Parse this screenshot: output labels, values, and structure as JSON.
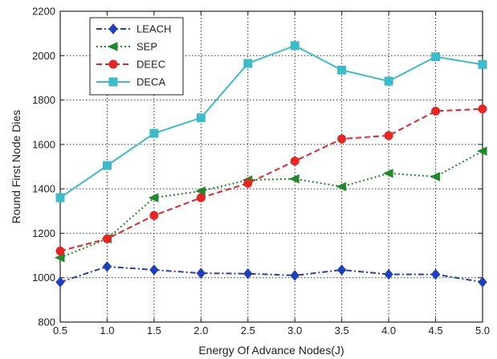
{
  "chart_data": {
    "type": "line",
    "title": "",
    "xlabel": "Energy Of Advance Nodes(J)",
    "ylabel": "Round First Node Dies",
    "x": [
      0.5,
      1.0,
      1.5,
      2.0,
      2.5,
      3.0,
      3.5,
      4.0,
      4.5,
      5.0
    ],
    "x_tick_labels": [
      "0.5",
      "1.0",
      "1.5",
      "2.0",
      "2.5",
      "3.0",
      "3.5",
      "4.0",
      "4.5",
      "5.0"
    ],
    "xlim": [
      0.5,
      5.0
    ],
    "ylim": [
      800,
      2200
    ],
    "y_ticks": [
      800,
      1000,
      1200,
      1400,
      1600,
      1800,
      2000,
      2200
    ],
    "y_tick_labels": [
      "800",
      "1000",
      "1200",
      "1400",
      "1600",
      "1800",
      "2000",
      "2200"
    ],
    "grid": true,
    "legend_position": "top-left",
    "series": [
      {
        "name": "LEACH",
        "color": "#1f3fbf",
        "marker": "diamond",
        "line_style": "dashdot",
        "values": [
          980,
          1050,
          1035,
          1020,
          1018,
          1010,
          1035,
          1015,
          1015,
          980
        ]
      },
      {
        "name": "SEP",
        "color": "#1e8a2a",
        "marker": "triangle-left",
        "line_style": "dotted",
        "values": [
          1090,
          1175,
          1360,
          1390,
          1440,
          1445,
          1410,
          1470,
          1455,
          1570
        ]
      },
      {
        "name": "DEEC",
        "color": "#e82424",
        "marker": "circle",
        "line_style": "dashed",
        "values": [
          1120,
          1175,
          1280,
          1360,
          1425,
          1525,
          1625,
          1640,
          1750,
          1760
        ]
      },
      {
        "name": "DECA",
        "color": "#3cbcc8",
        "marker": "square",
        "line_style": "solid",
        "values": [
          1360,
          1505,
          1650,
          1720,
          1965,
          2045,
          1935,
          1885,
          1995,
          1960
        ]
      }
    ]
  }
}
